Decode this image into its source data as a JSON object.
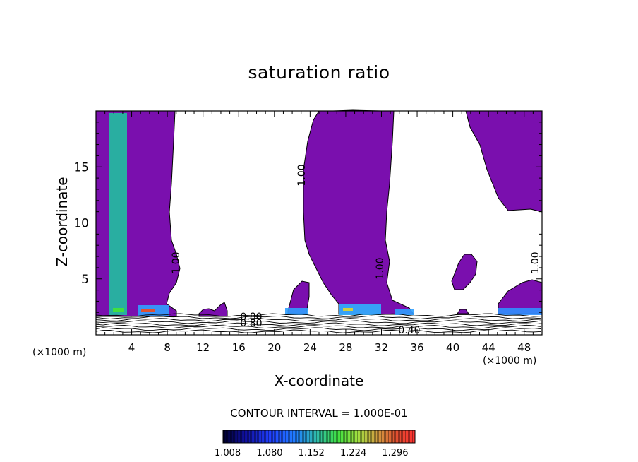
{
  "chart_data": {
    "type": "heatmap",
    "title": "saturation ratio",
    "xlabel": "X-coordinate",
    "ylabel": "Z-coordinate",
    "x_unit": "(×1000 m)",
    "x_ticks": [
      4,
      8,
      12,
      16,
      20,
      24,
      28,
      32,
      36,
      40,
      44,
      48
    ],
    "y_ticks": [
      5,
      10,
      15
    ],
    "xlim": [
      0,
      50
    ],
    "ylim": [
      0,
      20
    ],
    "contour_interval_label": "CONTOUR INTERVAL = 1.000E-01",
    "contour_labels": [
      "1.00",
      "1.00",
      "1.00",
      "1.00",
      "0.80",
      "0.80",
      "0.40"
    ],
    "colorbar": {
      "ticks": [
        "1.008",
        "1.080",
        "1.152",
        "1.224",
        "1.296"
      ],
      "range": [
        1.0,
        1.33
      ]
    },
    "colors": {
      "saturated_fill": "#7a0fae",
      "outline": "#000000"
    },
    "saturated_regions_x_ranges": [
      [
        0,
        9
      ],
      [
        21,
        34
      ],
      [
        43,
        50
      ]
    ]
  }
}
